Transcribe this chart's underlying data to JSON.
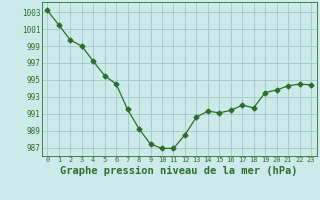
{
  "x": [
    0,
    1,
    2,
    3,
    4,
    5,
    6,
    7,
    8,
    9,
    10,
    11,
    12,
    13,
    14,
    15,
    16,
    17,
    18,
    19,
    20,
    21,
    22,
    23
  ],
  "y": [
    1003.2,
    1001.5,
    999.7,
    999.0,
    997.2,
    995.5,
    994.5,
    991.5,
    989.2,
    987.4,
    986.9,
    986.9,
    988.5,
    990.6,
    991.3,
    991.1,
    991.4,
    992.0,
    991.7,
    993.5,
    993.8,
    994.3,
    994.5,
    994.4
  ],
  "line_color": "#2d6e2d",
  "marker": "D",
  "marker_size": 2.5,
  "bg_color": "#cceaea",
  "grid_color": "#aacccc",
  "xlabel": "Graphe pression niveau de la mer (hPa)",
  "xlabel_fontsize": 7.5,
  "xtick_labels": [
    "0",
    "1",
    "2",
    "3",
    "4",
    "5",
    "6",
    "7",
    "8",
    "9",
    "10",
    "11",
    "12",
    "13",
    "14",
    "15",
    "16",
    "17",
    "18",
    "19",
    "20",
    "21",
    "22",
    "23"
  ],
  "ytick_values": [
    987,
    989,
    991,
    993,
    995,
    997,
    999,
    1001,
    1003
  ],
  "ylim": [
    986.0,
    1004.2
  ],
  "xlim": [
    -0.5,
    23.5
  ]
}
